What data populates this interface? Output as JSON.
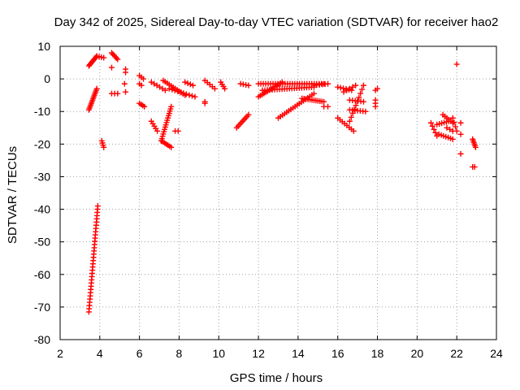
{
  "chart_data": {
    "type": "scatter",
    "title": "Day 342 of 2025, Sidereal Day-to-day VTEC variation (SDTVAR) for receiver hao2",
    "xlabel": "GPS time / hours",
    "ylabel": "SDTVAR / TECUs",
    "xlim": [
      2,
      24
    ],
    "ylim": [
      -80,
      10
    ],
    "xticks": [
      "2",
      "4",
      "6",
      "8",
      "10",
      "12",
      "14",
      "16",
      "18",
      "20",
      "22",
      "24"
    ],
    "yticks": [
      "10",
      "0",
      "-10",
      "-20",
      "-30",
      "-40",
      "-50",
      "-60",
      "-70",
      "-80"
    ],
    "grid": true,
    "marker": "+",
    "color": "#ff0000",
    "segments": [
      {
        "x0": 3.45,
        "y0": -9.5,
        "x1": 3.85,
        "y1": -3,
        "n": 14
      },
      {
        "x0": 3.45,
        "y0": 4,
        "x1": 3.85,
        "y1": 7,
        "n": 10
      },
      {
        "x0": 3.85,
        "y0": 7,
        "x1": 4.2,
        "y1": 6.5,
        "n": 4
      },
      {
        "x0": 3.45,
        "y0": -71.5,
        "x1": 3.9,
        "y1": -39,
        "n": 34
      },
      {
        "x0": 4.1,
        "y0": -19,
        "x1": 4.2,
        "y1": -21,
        "n": 4
      },
      {
        "x0": 4.6,
        "y0": 8,
        "x1": 4.9,
        "y1": 6,
        "n": 6
      },
      {
        "x0": 4.6,
        "y0": 3.5,
        "x1": 4.6,
        "y1": 3.5,
        "n": 1
      },
      {
        "x0": 4.6,
        "y0": -4.5,
        "x1": 4.9,
        "y1": -4.5,
        "n": 3
      },
      {
        "x0": 5.3,
        "y0": 3,
        "x1": 5.3,
        "y1": 2,
        "n": 2
      },
      {
        "x0": 5.25,
        "y0": -1.5,
        "x1": 5.3,
        "y1": -4,
        "n": 2
      },
      {
        "x0": 6.0,
        "y0": 1,
        "x1": 6.2,
        "y1": 0,
        "n": 3
      },
      {
        "x0": 6.0,
        "y0": -1.5,
        "x1": 6.1,
        "y1": -2,
        "n": 2
      },
      {
        "x0": 6.0,
        "y0": -7.5,
        "x1": 6.25,
        "y1": -8.5,
        "n": 4
      },
      {
        "x0": 6.6,
        "y0": -13,
        "x1": 6.9,
        "y1": -16,
        "n": 5
      },
      {
        "x0": 6.6,
        "y0": -1,
        "x1": 7.3,
        "y1": -3.5,
        "n": 6
      },
      {
        "x0": 7.1,
        "y0": -19,
        "x1": 7.6,
        "y1": -21,
        "n": 7
      },
      {
        "x0": 7.1,
        "y0": -19,
        "x1": 7.6,
        "y1": -8.5,
        "n": 16
      },
      {
        "x0": 7.2,
        "y0": -0.5,
        "x1": 8.3,
        "y1": -5,
        "n": 12
      },
      {
        "x0": 7.5,
        "y0": -3,
        "x1": 8.8,
        "y1": -5.5,
        "n": 10
      },
      {
        "x0": 7.8,
        "y0": -16,
        "x1": 7.95,
        "y1": -16,
        "n": 2
      },
      {
        "x0": 8.3,
        "y0": -1,
        "x1": 8.7,
        "y1": -2,
        "n": 4
      },
      {
        "x0": 9.3,
        "y0": -7,
        "x1": 9.3,
        "y1": -7.5,
        "n": 2
      },
      {
        "x0": 9.3,
        "y0": -0.5,
        "x1": 9.8,
        "y1": -3,
        "n": 5
      },
      {
        "x0": 10.1,
        "y0": -1,
        "x1": 10.3,
        "y1": -3,
        "n": 4
      },
      {
        "x0": 10.9,
        "y0": -15,
        "x1": 11.5,
        "y1": -11,
        "n": 9
      },
      {
        "x0": 11.1,
        "y0": -1.5,
        "x1": 11.5,
        "y1": -2,
        "n": 4
      },
      {
        "x0": 12.0,
        "y0": -5.5,
        "x1": 13.2,
        "y1": -1,
        "n": 14
      },
      {
        "x0": 12.0,
        "y0": -1.5,
        "x1": 15.3,
        "y1": -1.5,
        "n": 28
      },
      {
        "x0": 12.2,
        "y0": -3.5,
        "x1": 14.8,
        "y1": -2.5,
        "n": 22
      },
      {
        "x0": 13.0,
        "y0": -12,
        "x1": 14.8,
        "y1": -4.5,
        "n": 18
      },
      {
        "x0": 14.2,
        "y0": -6,
        "x1": 15.3,
        "y1": -7,
        "n": 12
      },
      {
        "x0": 14.8,
        "y0": -2,
        "x1": 15.5,
        "y1": -1.5,
        "n": 6
      },
      {
        "x0": 15.3,
        "y0": -8.5,
        "x1": 15.5,
        "y1": -8.5,
        "n": 2
      },
      {
        "x0": 16.0,
        "y0": -2.5,
        "x1": 16.7,
        "y1": -3.5,
        "n": 6
      },
      {
        "x0": 16.0,
        "y0": -12,
        "x1": 16.8,
        "y1": -16,
        "n": 8
      },
      {
        "x0": 16.6,
        "y0": -13,
        "x1": 17.3,
        "y1": -2,
        "n": 10
      },
      {
        "x0": 16.3,
        "y0": -4,
        "x1": 16.9,
        "y1": -2,
        "n": 5
      },
      {
        "x0": 16.6,
        "y0": -6.5,
        "x1": 17.3,
        "y1": -7,
        "n": 6
      },
      {
        "x0": 16.6,
        "y0": -9.5,
        "x1": 17.4,
        "y1": -10,
        "n": 7
      },
      {
        "x0": 17.9,
        "y0": -3.5,
        "x1": 18.0,
        "y1": -3,
        "n": 2
      },
      {
        "x0": 17.9,
        "y0": -6.5,
        "x1": 17.9,
        "y1": -8.5,
        "n": 3
      },
      {
        "x0": 20.7,
        "y0": -13.5,
        "x1": 21.0,
        "y1": -17.5,
        "n": 5
      },
      {
        "x0": 21.0,
        "y0": -14,
        "x1": 21.6,
        "y1": -13,
        "n": 6
      },
      {
        "x0": 21.1,
        "y0": -17,
        "x1": 21.8,
        "y1": -18.5,
        "n": 7
      },
      {
        "x0": 21.3,
        "y0": -11,
        "x1": 21.8,
        "y1": -13.5,
        "n": 6
      },
      {
        "x0": 21.5,
        "y0": -15,
        "x1": 21.8,
        "y1": -16,
        "n": 3
      },
      {
        "x0": 21.8,
        "y0": -12,
        "x1": 22.0,
        "y1": -16,
        "n": 4
      },
      {
        "x0": 22.0,
        "y0": 4.5,
        "x1": 22.0,
        "y1": 4.5,
        "n": 1
      },
      {
        "x0": 22.2,
        "y0": -13.5,
        "x1": 22.2,
        "y1": -17,
        "n": 2
      },
      {
        "x0": 22.2,
        "y0": -23,
        "x1": 22.2,
        "y1": -23,
        "n": 1
      },
      {
        "x0": 22.8,
        "y0": -18.5,
        "x1": 22.95,
        "y1": -21,
        "n": 6
      },
      {
        "x0": 22.8,
        "y0": -27,
        "x1": 22.9,
        "y1": -27,
        "n": 2
      }
    ]
  }
}
